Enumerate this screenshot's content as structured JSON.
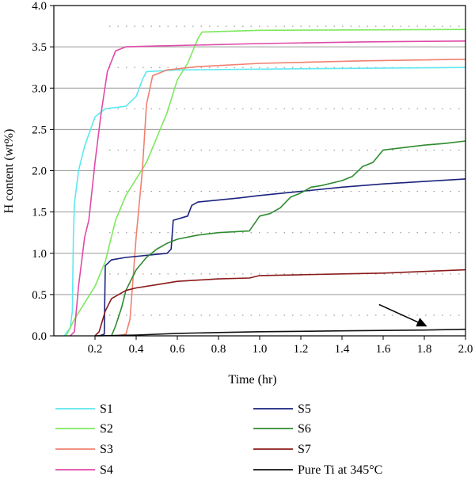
{
  "chart_data": {
    "type": "line",
    "title": "",
    "xlabel": "Time (hr)",
    "ylabel": "H content (wt%)",
    "xlim": [
      0,
      2.0
    ],
    "ylim": [
      0,
      4.0
    ],
    "x_ticks": [
      "0.2",
      "0.4",
      "0.6",
      "0.8",
      "1.0",
      "1.2",
      "1.4",
      "1.6",
      "1.8",
      "2.0"
    ],
    "y_ticks": [
      "0.0",
      "0.5",
      "1.0",
      "1.5",
      "2.0",
      "2.5",
      "3.0",
      "3.5",
      "4.0"
    ],
    "grid": "horizontal",
    "legend_position": "below",
    "annotation": "arrow pointing to Pure Ti at 345°C curve",
    "series": [
      {
        "name": "S1",
        "color": "#5ee8f0",
        "points": [
          [
            0.05,
            0
          ],
          [
            0.08,
            0.1
          ],
          [
            0.09,
            0.3
          ],
          [
            0.095,
            1.2
          ],
          [
            0.1,
            1.6
          ],
          [
            0.12,
            2.0
          ],
          [
            0.15,
            2.3
          ],
          [
            0.2,
            2.65
          ],
          [
            0.25,
            2.75
          ],
          [
            0.35,
            2.78
          ],
          [
            0.4,
            2.9
          ],
          [
            0.43,
            3.1
          ],
          [
            0.45,
            3.2
          ],
          [
            0.6,
            3.22
          ],
          [
            1.0,
            3.23
          ],
          [
            1.5,
            3.24
          ],
          [
            2.0,
            3.25
          ]
        ]
      },
      {
        "name": "S2",
        "color": "#7ee85e",
        "points": [
          [
            0.06,
            0
          ],
          [
            0.1,
            0.2
          ],
          [
            0.2,
            0.6
          ],
          [
            0.25,
            0.9
          ],
          [
            0.3,
            1.4
          ],
          [
            0.35,
            1.7
          ],
          [
            0.4,
            1.9
          ],
          [
            0.45,
            2.1
          ],
          [
            0.5,
            2.4
          ],
          [
            0.55,
            2.7
          ],
          [
            0.6,
            3.1
          ],
          [
            0.65,
            3.3
          ],
          [
            0.7,
            3.6
          ],
          [
            0.72,
            3.68
          ],
          [
            1.0,
            3.7
          ],
          [
            2.0,
            3.71
          ]
        ]
      },
      {
        "name": "S3",
        "color": "#f08070",
        "points": [
          [
            0.3,
            0
          ],
          [
            0.35,
            0.02
          ],
          [
            0.37,
            0.2
          ],
          [
            0.4,
            1.2
          ],
          [
            0.43,
            2.0
          ],
          [
            0.45,
            2.8
          ],
          [
            0.48,
            3.15
          ],
          [
            0.55,
            3.22
          ],
          [
            0.7,
            3.26
          ],
          [
            1.0,
            3.3
          ],
          [
            1.5,
            3.33
          ],
          [
            2.0,
            3.35
          ]
        ]
      },
      {
        "name": "S4",
        "color": "#e04aa8",
        "points": [
          [
            0.08,
            0
          ],
          [
            0.1,
            0.05
          ],
          [
            0.12,
            0.6
          ],
          [
            0.15,
            1.2
          ],
          [
            0.17,
            1.4
          ],
          [
            0.2,
            2.1
          ],
          [
            0.23,
            2.7
          ],
          [
            0.26,
            3.2
          ],
          [
            0.3,
            3.45
          ],
          [
            0.35,
            3.5
          ],
          [
            0.5,
            3.51
          ],
          [
            1.0,
            3.54
          ],
          [
            1.5,
            3.56
          ],
          [
            2.0,
            3.57
          ]
        ]
      },
      {
        "name": "S5",
        "color": "#1a237e",
        "points": [
          [
            0.22,
            0
          ],
          [
            0.245,
            0.02
          ],
          [
            0.25,
            0.85
          ],
          [
            0.28,
            0.92
          ],
          [
            0.35,
            0.95
          ],
          [
            0.55,
            1.0
          ],
          [
            0.57,
            1.05
          ],
          [
            0.58,
            1.4
          ],
          [
            0.65,
            1.45
          ],
          [
            0.67,
            1.58
          ],
          [
            0.7,
            1.62
          ],
          [
            0.9,
            1.67
          ],
          [
            1.0,
            1.7
          ],
          [
            1.2,
            1.75
          ],
          [
            1.4,
            1.8
          ],
          [
            1.6,
            1.84
          ],
          [
            1.8,
            1.87
          ],
          [
            2.0,
            1.9
          ]
        ]
      },
      {
        "name": "S6",
        "color": "#2e8b2e",
        "points": [
          [
            0.28,
            0
          ],
          [
            0.3,
            0.12
          ],
          [
            0.33,
            0.35
          ],
          [
            0.35,
            0.55
          ],
          [
            0.4,
            0.8
          ],
          [
            0.45,
            0.95
          ],
          [
            0.5,
            1.05
          ],
          [
            0.55,
            1.12
          ],
          [
            0.6,
            1.17
          ],
          [
            0.7,
            1.22
          ],
          [
            0.8,
            1.25
          ],
          [
            0.95,
            1.27
          ],
          [
            1.0,
            1.45
          ],
          [
            1.05,
            1.48
          ],
          [
            1.1,
            1.55
          ],
          [
            1.15,
            1.68
          ],
          [
            1.2,
            1.73
          ],
          [
            1.25,
            1.8
          ],
          [
            1.3,
            1.82
          ],
          [
            1.4,
            1.88
          ],
          [
            1.45,
            1.93
          ],
          [
            1.5,
            2.05
          ],
          [
            1.55,
            2.1
          ],
          [
            1.6,
            2.25
          ],
          [
            1.7,
            2.28
          ],
          [
            1.8,
            2.31
          ],
          [
            1.9,
            2.33
          ],
          [
            2.0,
            2.36
          ]
        ]
      },
      {
        "name": "S7",
        "color": "#8b1a1a",
        "points": [
          [
            0.2,
            0
          ],
          [
            0.22,
            0.05
          ],
          [
            0.25,
            0.3
          ],
          [
            0.28,
            0.45
          ],
          [
            0.35,
            0.55
          ],
          [
            0.4,
            0.58
          ],
          [
            0.5,
            0.62
          ],
          [
            0.6,
            0.66
          ],
          [
            0.8,
            0.69
          ],
          [
            0.95,
            0.7
          ],
          [
            1.0,
            0.73
          ],
          [
            1.2,
            0.74
          ],
          [
            1.4,
            0.75
          ],
          [
            1.6,
            0.76
          ],
          [
            1.8,
            0.78
          ],
          [
            2.0,
            0.8
          ]
        ]
      },
      {
        "name": "Pure Ti at 345°C",
        "color": "#111111",
        "points": [
          [
            0.2,
            0
          ],
          [
            0.4,
            0.01
          ],
          [
            0.6,
            0.03
          ],
          [
            0.8,
            0.04
          ],
          [
            1.0,
            0.05
          ],
          [
            1.2,
            0.055
          ],
          [
            1.4,
            0.06
          ],
          [
            1.6,
            0.065
          ],
          [
            1.8,
            0.07
          ],
          [
            2.0,
            0.08
          ]
        ]
      }
    ]
  }
}
